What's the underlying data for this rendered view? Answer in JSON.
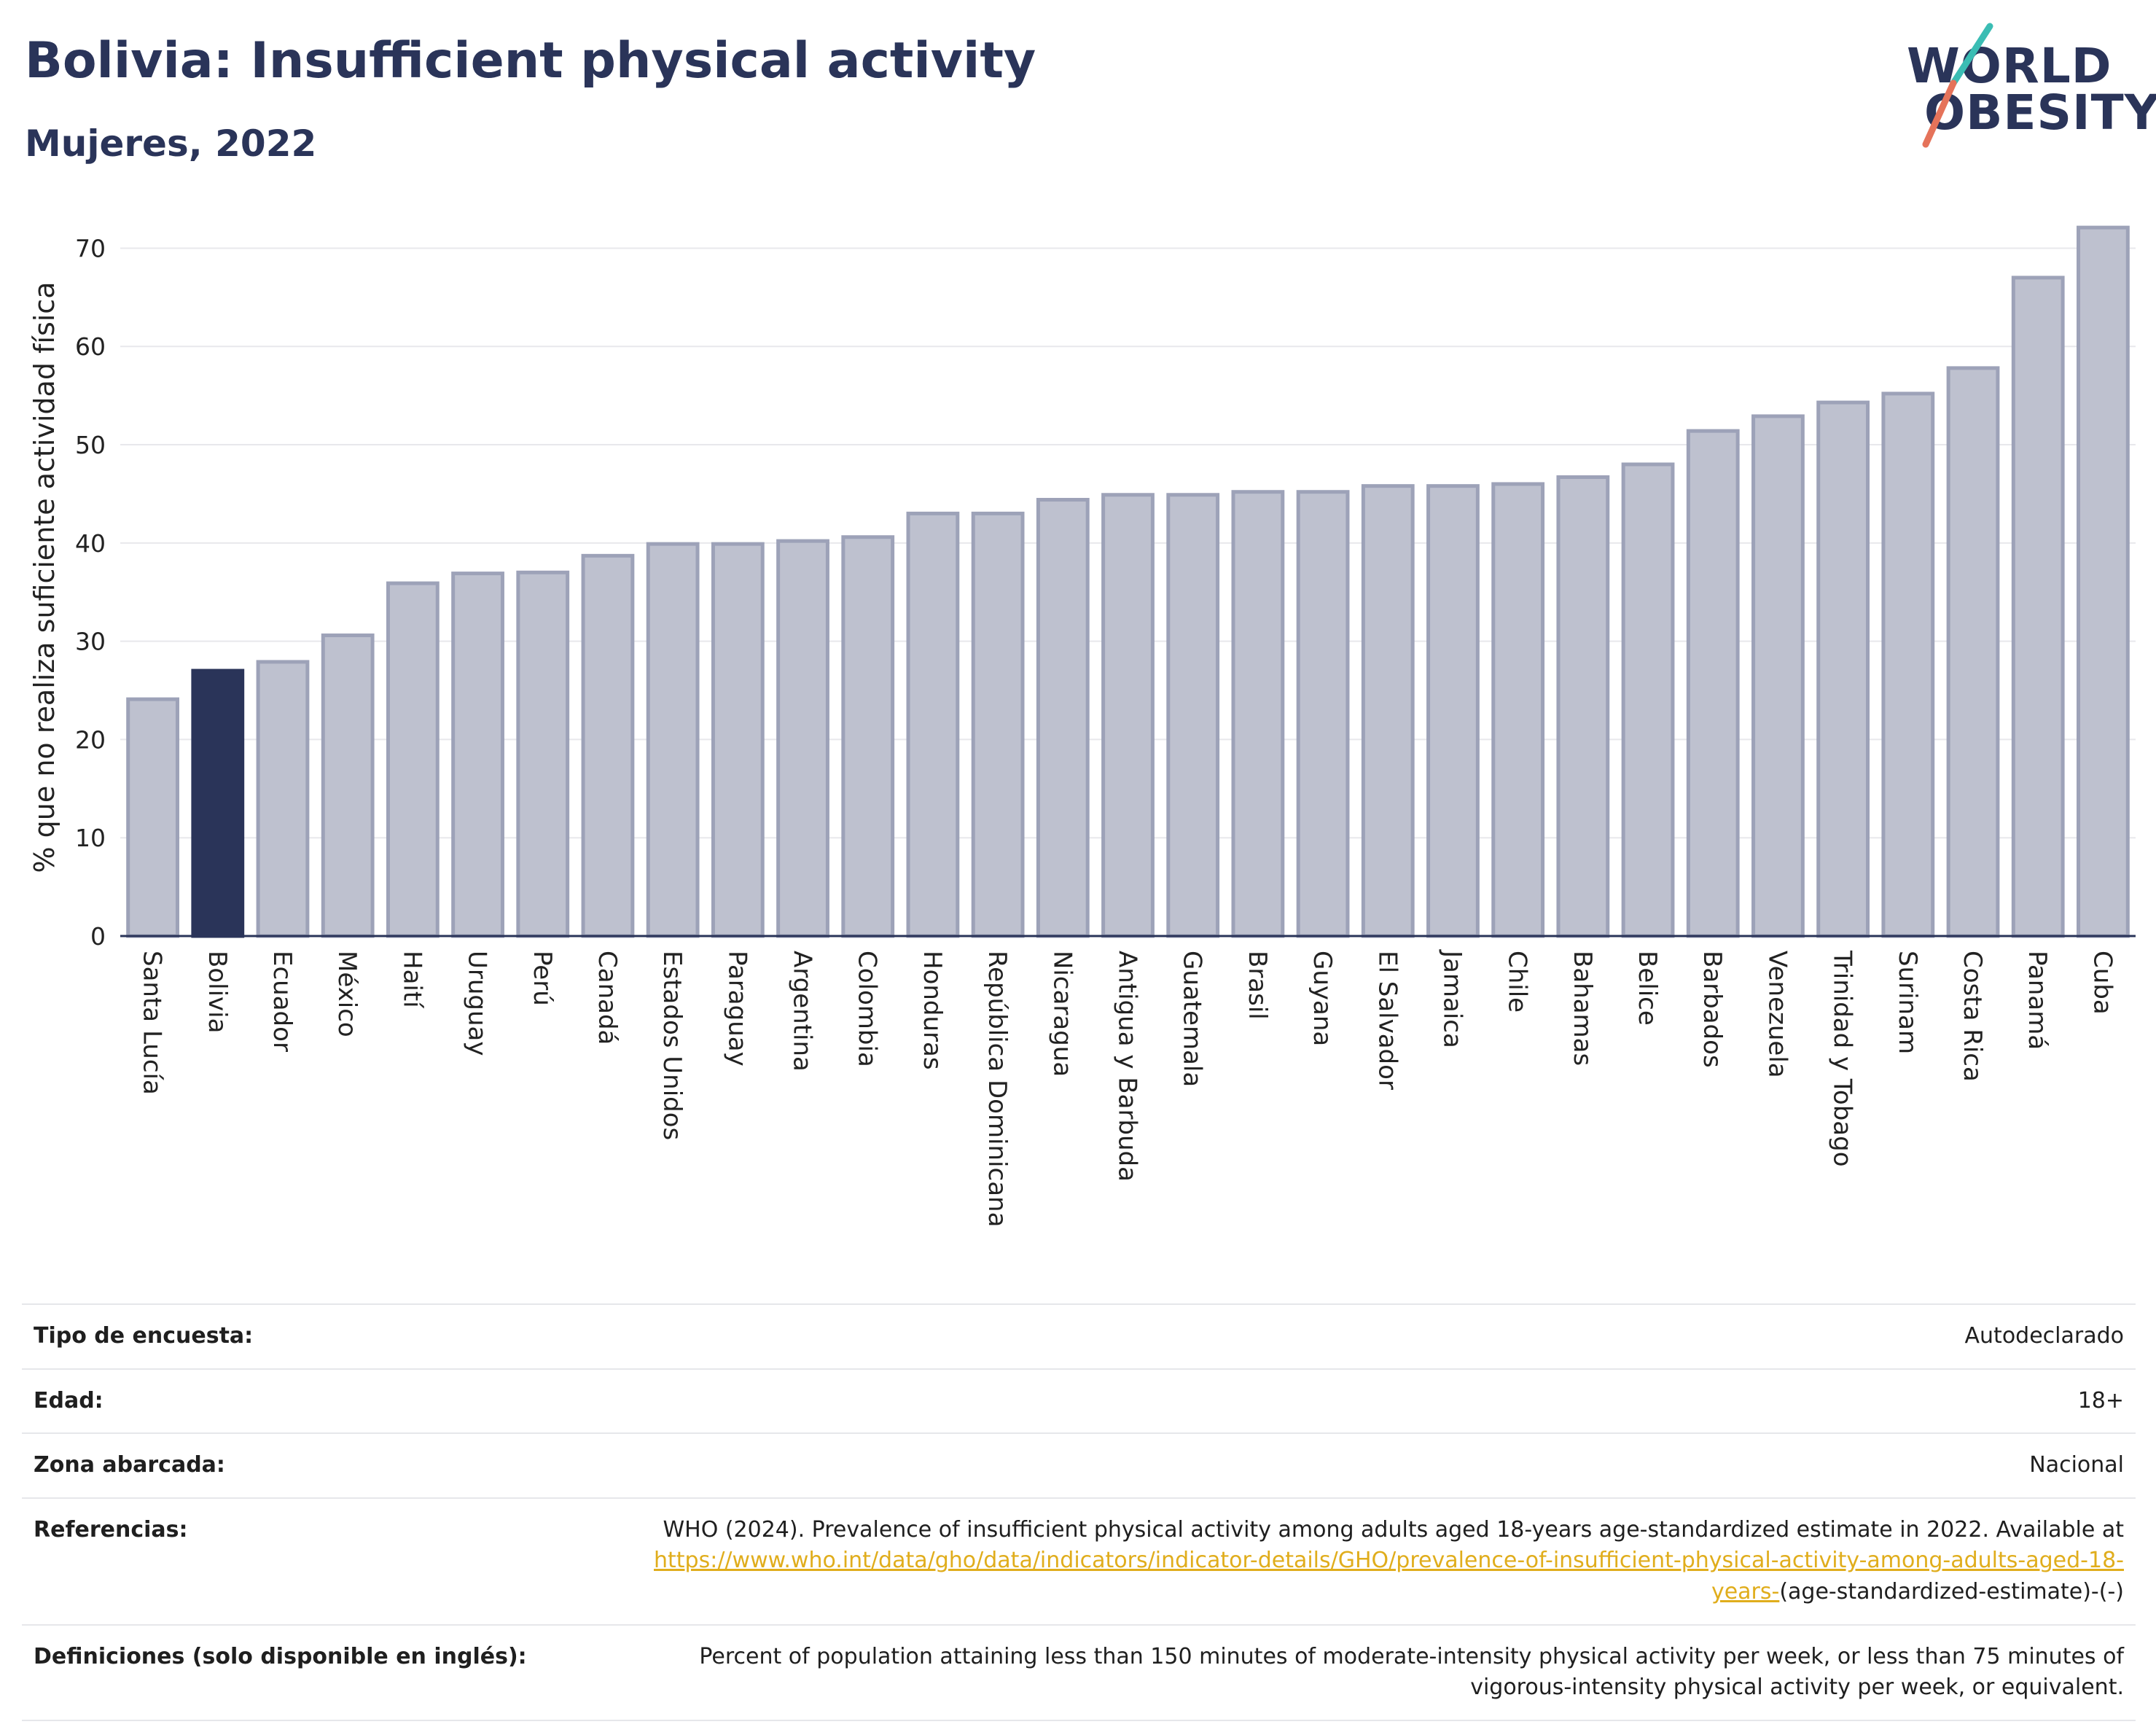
{
  "header": {
    "title": "Bolivia: Insufficient physical activity",
    "subtitle": "Mujeres, 2022"
  },
  "logo": {
    "line1": "WORLD",
    "line2": "OBESITY",
    "colors": {
      "text": "#2a3459",
      "slash_top": "#3bbdb4",
      "slash_bottom": "#e5735a"
    }
  },
  "chart_data": {
    "type": "bar",
    "ylabel": "% que no realiza suficiente actividad física",
    "xlabel": "",
    "ylim": [
      0,
      73
    ],
    "yticks": [
      0,
      10,
      20,
      30,
      40,
      50,
      60,
      70
    ],
    "grid": true,
    "highlight": "Bolivia",
    "colors": {
      "bar": "#bec1cf",
      "bar_stroke": "#9da2b8",
      "highlight": "#2a3459",
      "grid": "#e8e8ec",
      "axis": "#2a3459"
    },
    "categories": [
      "Santa Lucía",
      "Bolivia",
      "Ecuador",
      "México",
      "Haití",
      "Uruguay",
      "Perú",
      "Canadá",
      "Estados Unidos",
      "Paraguay",
      "Argentina",
      "Colombia",
      "Honduras",
      "República Dominicana",
      "Nicaragua",
      "Antigua y Barbuda",
      "Guatemala",
      "Brasil",
      "Guyana",
      "El Salvador",
      "Jamaica",
      "Chile",
      "Bahamas",
      "Belice",
      "Barbados",
      "Venezuela",
      "Trinidad y Tobago",
      "Surinam",
      "Costa Rica",
      "Panamá",
      "Cuba"
    ],
    "values": [
      24.1,
      27.0,
      27.9,
      30.6,
      35.9,
      36.9,
      37.0,
      38.7,
      39.9,
      39.9,
      40.2,
      40.6,
      43.0,
      43.0,
      44.4,
      44.9,
      44.9,
      45.2,
      45.2,
      45.8,
      45.8,
      46.0,
      46.7,
      48.0,
      51.4,
      52.9,
      54.3,
      55.2,
      57.8,
      67.0,
      72.1
    ]
  },
  "metadata": {
    "rows": [
      {
        "label": "Tipo de encuesta:",
        "value": "Autodeclarado"
      },
      {
        "label": "Edad:",
        "value": "18+"
      },
      {
        "label": "Zona abarcada:",
        "value": "Nacional"
      }
    ],
    "references": {
      "label": "Referencias:",
      "text": "WHO (2024). Prevalence of insufficient physical activity among adults aged 18-years age-standardized estimate in 2022. Available at",
      "link": "https://www.who.int/data/gho/data/indicators/indicator-details/GHO/prevalence-of-insufficient-physical-activity-among-adults-aged-18-years-",
      "suffix": "(age-standardized-estimate)-(-)"
    },
    "definitions": {
      "label": "Definiciones (solo disponible en inglés):",
      "text": "Percent of population attaining less than 150 minutes of moderate-intensity physical activity per week, or less than 75 minutes of vigorous-intensity physical activity per week, or equivalent."
    }
  }
}
